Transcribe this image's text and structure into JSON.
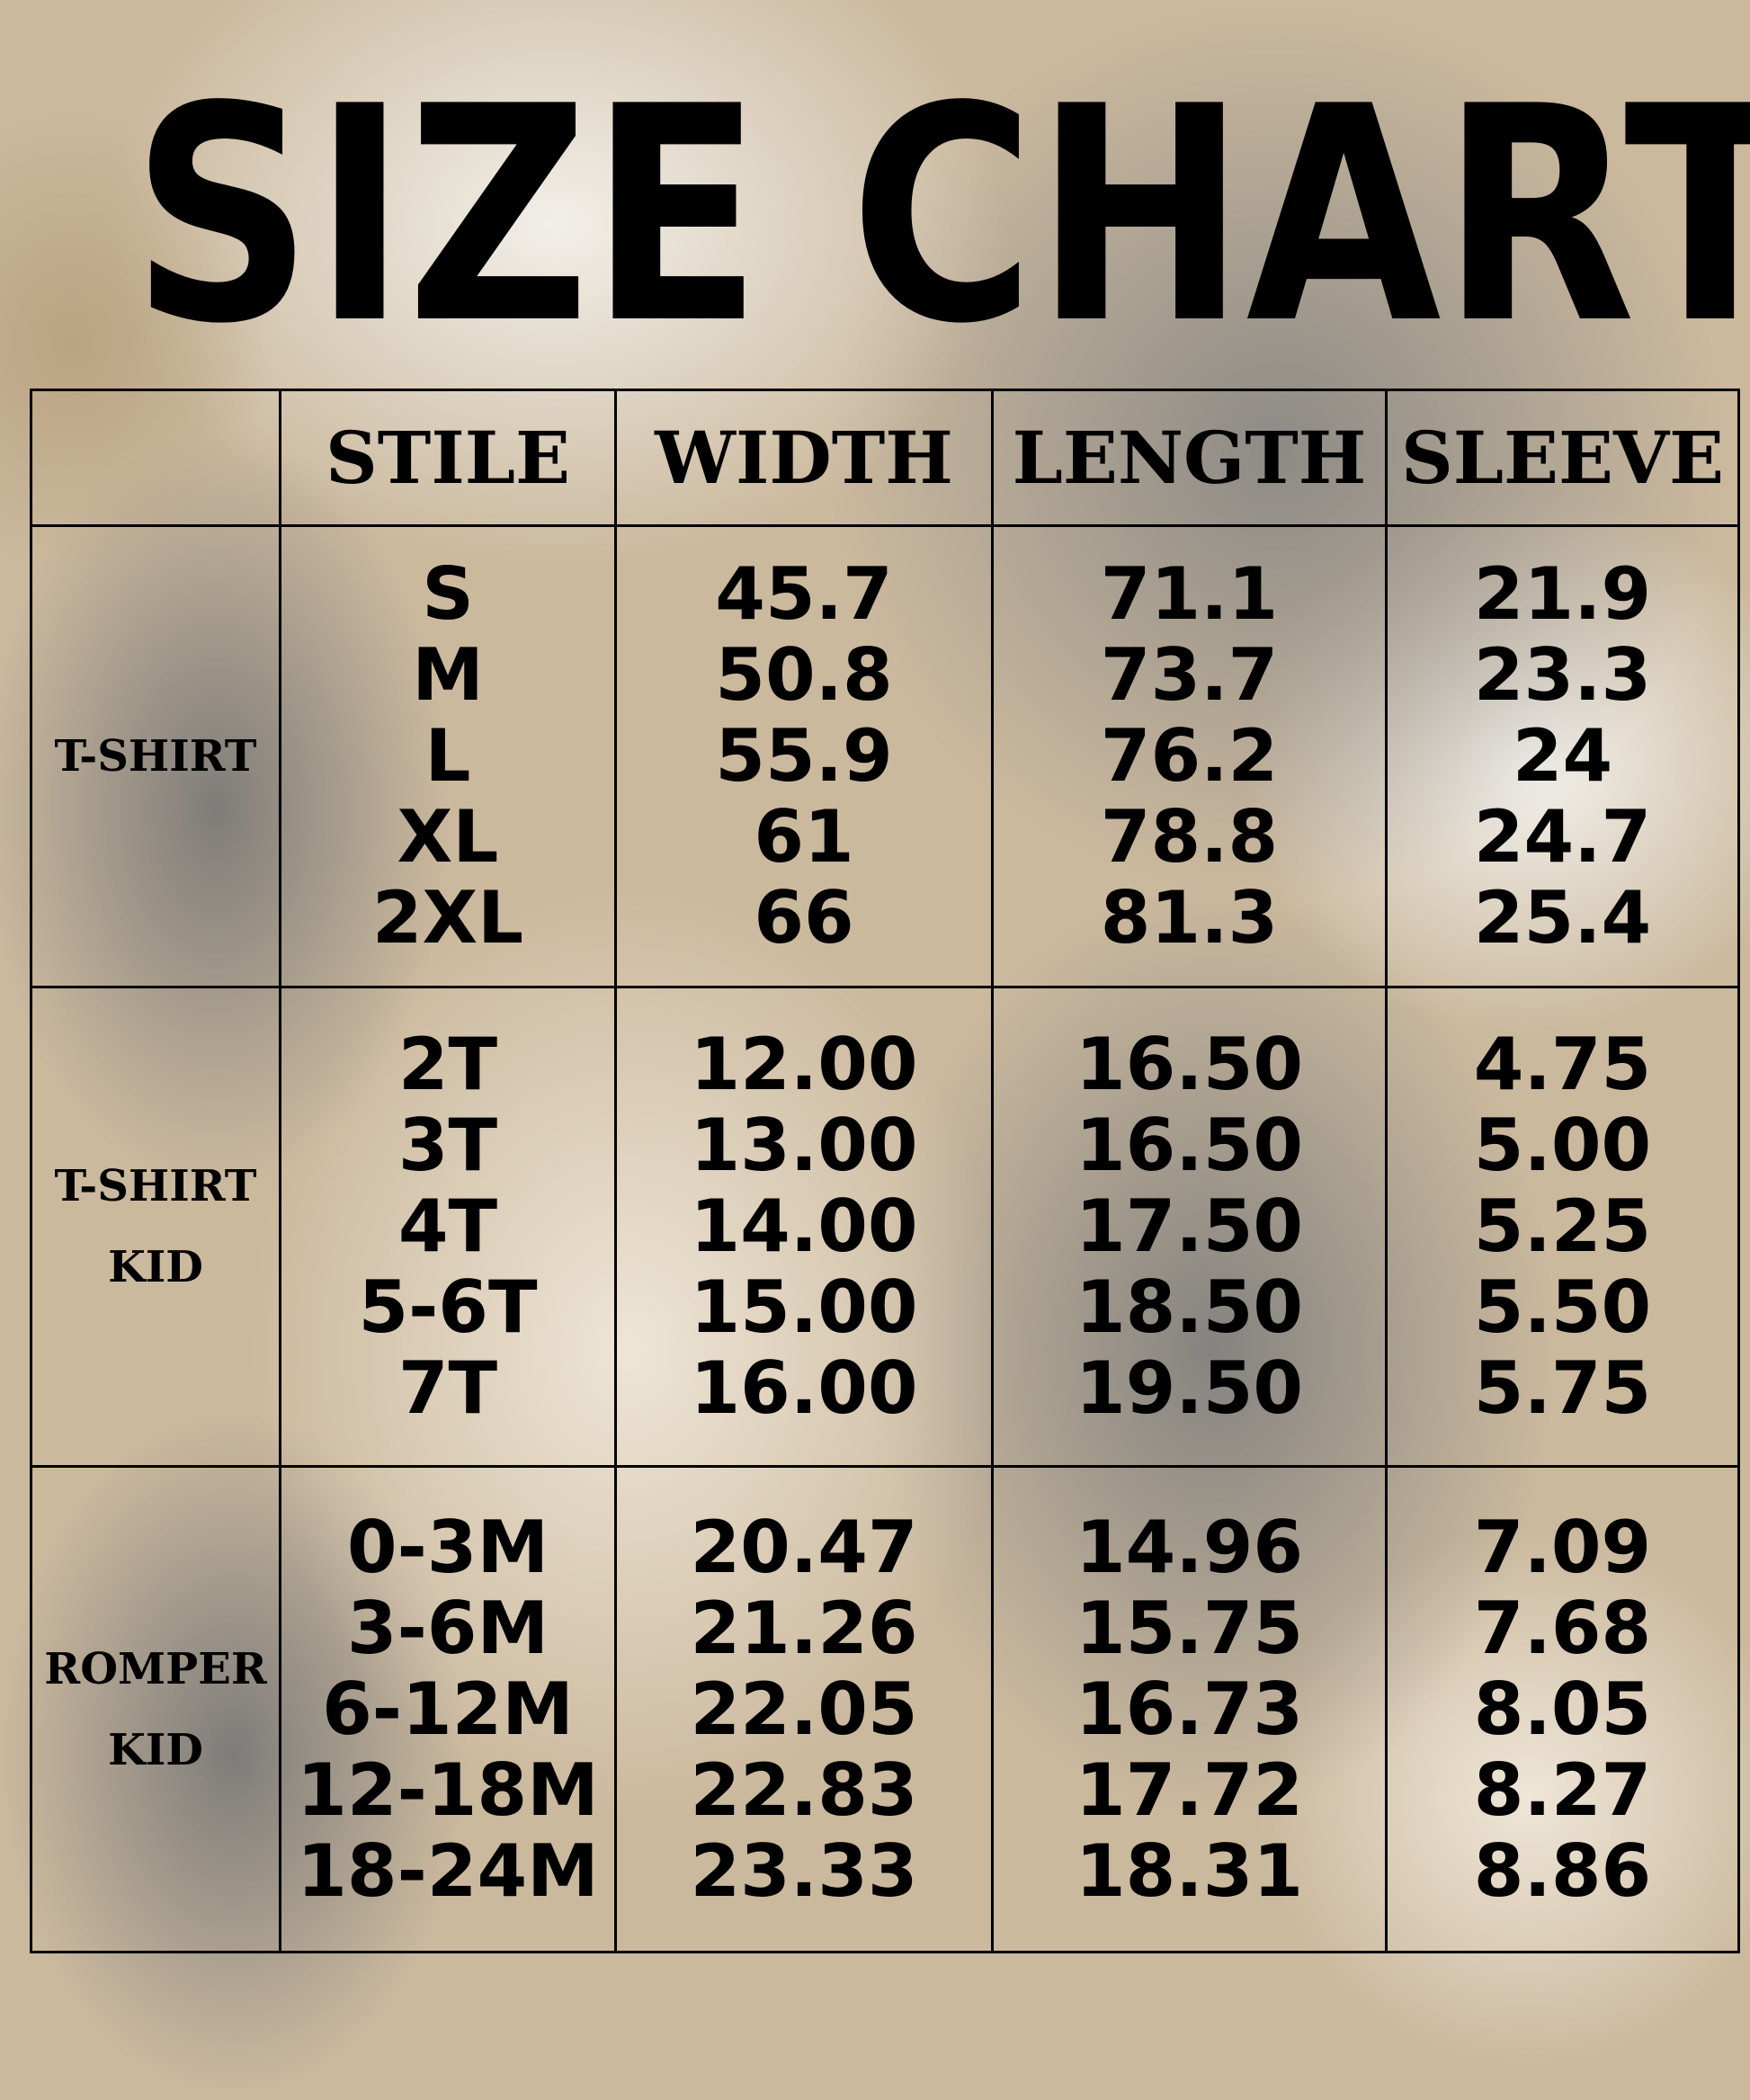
{
  "title": "SIZE CHART",
  "headers": [
    "",
    "STILE",
    "WIDTH",
    "LENGTH",
    "SLEEVE"
  ],
  "groups": [
    {
      "category": [
        "T-SHIRT"
      ],
      "stile": [
        "S",
        "M",
        "L",
        "XL",
        "2XL"
      ],
      "width": [
        "45.7",
        "50.8",
        "55.9",
        "61",
        "66"
      ],
      "length": [
        "71.1",
        "73.7",
        "76.2",
        "78.8",
        "81.3"
      ],
      "sleeve": [
        "21.9",
        "23.3",
        "24",
        "24.7",
        "25.4"
      ]
    },
    {
      "category": [
        "T-SHIRT",
        "KID"
      ],
      "stile": [
        "2T",
        "3T",
        "4T",
        "5-6T",
        "7T"
      ],
      "width": [
        "12.00",
        "13.00",
        "14.00",
        "15.00",
        "16.00"
      ],
      "length": [
        "16.50",
        "16.50",
        "17.50",
        "18.50",
        "19.50"
      ],
      "sleeve": [
        "4.75",
        "5.00",
        "5.25",
        "5.50",
        "5.75"
      ]
    },
    {
      "category": [
        "ROMPER",
        "KID"
      ],
      "stile": [
        "0-3M",
        "3-6M",
        "6-12M",
        "12-18M",
        "18-24M"
      ],
      "width": [
        "20.47",
        "21.26",
        "22.05",
        "22.83",
        "23.33"
      ],
      "length": [
        "14.96",
        "15.75",
        "16.73",
        "17.72",
        "18.31"
      ],
      "sleeve": [
        "7.09",
        "7.68",
        "8.05",
        "8.27",
        "8.86"
      ]
    }
  ]
}
